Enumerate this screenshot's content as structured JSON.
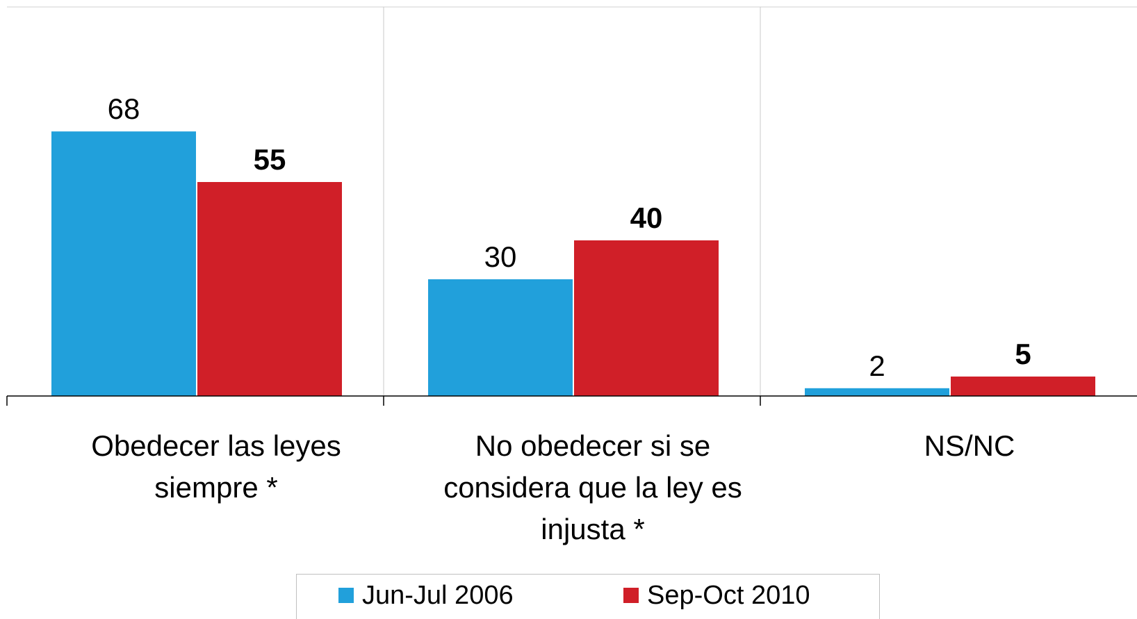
{
  "chart_data": {
    "type": "bar",
    "categories": [
      "Obedecer las leyes siempre *",
      "No obedecer si se considera que la ley es injusta *",
      "NS/NC"
    ],
    "series": [
      {
        "name": "Jun-Jul 2006",
        "color": "#21a0db",
        "values": [
          68,
          30,
          2
        ]
      },
      {
        "name": "Sep-Oct 2010",
        "color": "#d01f28",
        "values": [
          55,
          40,
          5
        ]
      }
    ],
    "ylim": [
      0,
      100
    ],
    "grid": true,
    "legend": "bottom"
  }
}
